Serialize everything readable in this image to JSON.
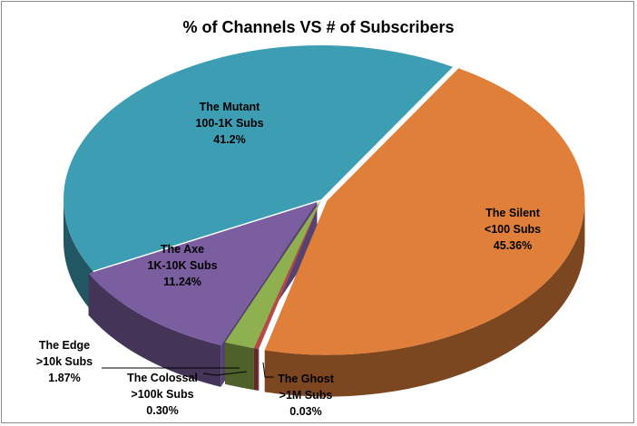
{
  "chart_data": {
    "type": "pie",
    "title": "% of Channels VS # of Subscribers",
    "style": "3d-exploded-pie",
    "legend": "none",
    "slices": [
      {
        "name": "The Silent",
        "range": "<100 Subs",
        "value": 45.36,
        "pct_label": "45.36%",
        "color": "#e07f3a"
      },
      {
        "name": "The Ghost",
        "range": ">1M Subs",
        "value": 0.03,
        "pct_label": "0.03%",
        "color": "#be4b48"
      },
      {
        "name": "The Colossal",
        "range": ">100k Subs",
        "value": 0.3,
        "pct_label": "0.30%",
        "color": "#b44a46"
      },
      {
        "name": "The Edge",
        "range": ">10k Subs",
        "value": 1.87,
        "pct_label": "1.87%",
        "color": "#8fb04f"
      },
      {
        "name": "The Axe",
        "range": "1K-10K Subs",
        "value": 11.24,
        "pct_label": "11.24%",
        "color": "#7b5ea0"
      },
      {
        "name": "The Mutant",
        "range": "100-1K Subs",
        "value": 41.2,
        "pct_label": "41.2%",
        "color": "#3d9db3"
      }
    ]
  }
}
